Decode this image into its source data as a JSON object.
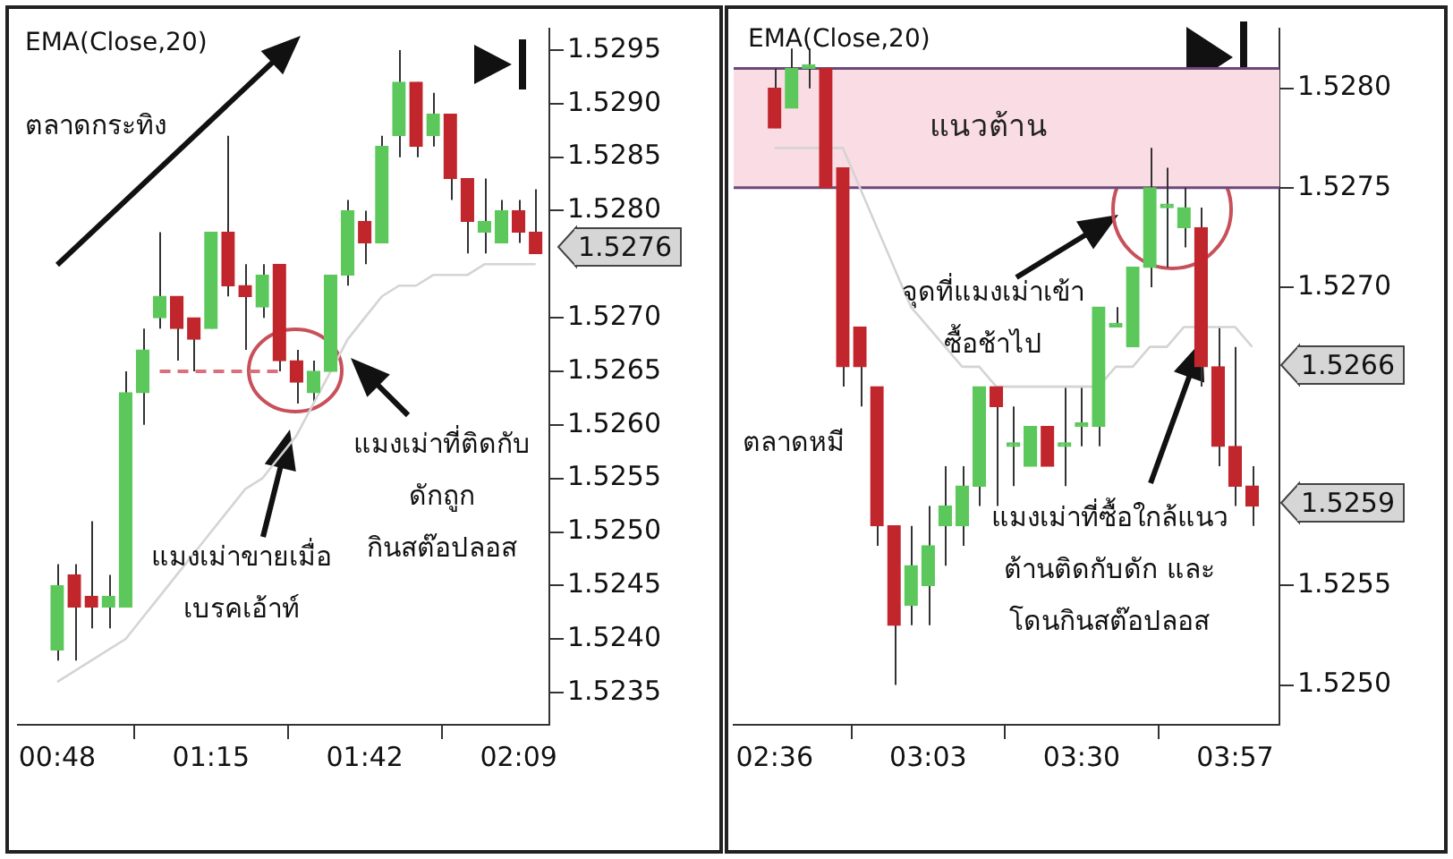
{
  "chart_data": [
    {
      "type": "candlestick",
      "categories": [
        "00:48",
        null,
        null,
        null,
        null,
        null,
        null,
        null,
        null,
        "01:15",
        null,
        null,
        null,
        null,
        null,
        null,
        null,
        null,
        "01:42",
        null,
        null,
        null,
        null,
        null,
        null,
        null,
        null,
        "02:09",
        null
      ],
      "ohlc": [
        [
          1.5239,
          1.5247,
          1.5238,
          1.5245
        ],
        [
          1.5246,
          1.5247,
          1.5238,
          1.5243
        ],
        [
          1.5244,
          1.5251,
          1.5241,
          1.5243
        ],
        [
          1.5243,
          1.5246,
          1.5241,
          1.5244
        ],
        [
          1.5243,
          1.5265,
          1.5243,
          1.5263
        ],
        [
          1.5263,
          1.5269,
          1.526,
          1.5267
        ],
        [
          1.527,
          1.5278,
          1.5269,
          1.5272
        ],
        [
          1.5272,
          1.5272,
          1.5266,
          1.5269
        ],
        [
          1.527,
          1.527,
          1.5265,
          1.5268
        ],
        [
          1.5269,
          1.5278,
          1.5269,
          1.5278
        ],
        [
          1.5278,
          1.5287,
          1.5272,
          1.5273
        ],
        [
          1.5273,
          1.5275,
          1.5267,
          1.5272
        ],
        [
          1.5271,
          1.5275,
          1.527,
          1.5274
        ],
        [
          1.5275,
          1.5275,
          1.5265,
          1.5266
        ],
        [
          1.5266,
          1.5267,
          1.5262,
          1.5264
        ],
        [
          1.5263,
          1.5266,
          1.5262,
          1.5265
        ],
        [
          1.5265,
          1.5274,
          1.5265,
          1.5274
        ],
        [
          1.5274,
          1.5281,
          1.5273,
          1.528
        ],
        [
          1.5279,
          1.528,
          1.5275,
          1.5277
        ],
        [
          1.5277,
          1.5287,
          1.5277,
          1.5286
        ],
        [
          1.5287,
          1.5295,
          1.5285,
          1.5292
        ],
        [
          1.5292,
          1.5292,
          1.5285,
          1.5286
        ],
        [
          1.5287,
          1.5291,
          1.5286,
          1.5289
        ],
        [
          1.5289,
          1.5289,
          1.5281,
          1.5283
        ],
        [
          1.5283,
          1.5283,
          1.5276,
          1.5279
        ],
        [
          1.5278,
          1.5283,
          1.5276,
          1.5279
        ],
        [
          1.5277,
          1.5281,
          1.5277,
          1.528
        ],
        [
          1.528,
          1.5281,
          1.5277,
          1.5278
        ],
        [
          1.5278,
          1.5282,
          1.5276,
          1.5276
        ]
      ],
      "colors": [
        "#5cc85c",
        "#c0262c",
        "#c0262c",
        "#5cc85c",
        "#5cc85c",
        "#5cc85c",
        "#5cc85c",
        "#c0262c",
        "#c0262c",
        "#5cc85c",
        "#c0262c",
        "#c0262c",
        "#5cc85c",
        "#c0262c",
        "#c0262c",
        "#5cc85c",
        "#5cc85c",
        "#5cc85c",
        "#c0262c",
        "#5cc85c",
        "#5cc85c",
        "#c0262c",
        "#5cc85c",
        "#c0262c",
        "#c0262c",
        "#5cc85c",
        "#5cc85c",
        "#c0262c",
        "#c0262c"
      ],
      "series": [
        {
          "type": "line",
          "color": "#d4d4d4",
          "values": [
            1.5236,
            1.5237,
            1.5238,
            1.5239,
            1.524,
            1.5242,
            1.5244,
            1.5246,
            1.5248,
            1.525,
            1.5252,
            1.5254,
            1.5255,
            1.5257,
            1.5259,
            1.5262,
            1.5265,
            1.5268,
            1.527,
            1.5272,
            1.5273,
            1.5273,
            1.5274,
            1.5274,
            1.5274,
            1.5275,
            1.5275,
            1.5275,
            1.5275
          ]
        },
        {
          "type": "line",
          "color": "#d9707a",
          "line_style": "dashed",
          "values": [
            null,
            null,
            null,
            null,
            null,
            null,
            1.5265,
            1.5265,
            1.5265,
            1.5265,
            1.5265,
            1.5265,
            1.5265,
            1.5265,
            null,
            null,
            null,
            null,
            null,
            null,
            null,
            null,
            null,
            null,
            null,
            null,
            null,
            null,
            null
          ]
        }
      ],
      "ylim": [
        1.5232,
        1.5297
      ],
      "yticks": [
        1.5235,
        {
          "value": 1.524,
          "label": "1.5240"
        },
        1.5245,
        {
          "value": 1.525,
          "label": "1.5250"
        },
        1.5255,
        {
          "value": 1.526,
          "label": "1.5260"
        },
        1.5265,
        {
          "value": 1.527,
          "label": "1.5270"
        },
        {
          "value": 1.528,
          "label": "1.5280"
        },
        1.5285,
        {
          "value": 1.529,
          "label": "1.5290"
        },
        1.5295
      ],
      "annotations": [
        "EMA(Close,20)",
        "ตลาดกระทิง",
        "แมงเม่าขายเมื่อ\nเบรคเอ้าท์",
        "แมงเม่าที่ติดกับ\nดักถูก\nกินสต๊อปลอส",
        "1.5276"
      ]
    },
    {
      "type": "candlestick",
      "categories": [
        "02:36",
        null,
        null,
        null,
        null,
        null,
        null,
        null,
        null,
        "03:03",
        null,
        null,
        null,
        null,
        null,
        null,
        null,
        null,
        "03:30",
        null,
        null,
        null,
        null,
        null,
        null,
        null,
        null,
        "03:57",
        null
      ],
      "ohlc": [
        [
          1.528,
          1.5281,
          1.5278,
          1.5278
        ],
        [
          1.5279,
          1.5282,
          1.5279,
          1.5281
        ],
        [
          1.5281,
          1.5282,
          1.528,
          1.5281
        ],
        [
          1.5281,
          1.5281,
          1.5275,
          1.5275
        ],
        [
          1.5276,
          1.5276,
          1.5265,
          1.5266
        ],
        [
          1.5268,
          1.5268,
          1.5264,
          1.5266
        ],
        [
          1.5265,
          1.5265,
          1.5257,
          1.5258
        ],
        [
          1.5258,
          1.5258,
          1.525,
          1.5253
        ],
        [
          1.5254,
          1.5258,
          1.5253,
          1.5256
        ],
        [
          1.5255,
          1.5259,
          1.5253,
          1.5257
        ],
        [
          1.5258,
          1.5261,
          1.5256,
          1.5259
        ],
        [
          1.5258,
          1.5261,
          1.5257,
          1.526
        ],
        [
          1.526,
          1.5265,
          1.5259,
          1.5265
        ],
        [
          1.5265,
          1.5265,
          1.5259,
          1.5264
        ],
        [
          1.5262,
          1.5264,
          1.526,
          1.5262
        ],
        [
          1.5261,
          1.5263,
          1.5261,
          1.5263
        ],
        [
          1.5263,
          1.5263,
          1.5261,
          1.5261
        ],
        [
          1.5262,
          1.5265,
          1.526,
          1.5262
        ],
        [
          1.5263,
          1.5265,
          1.5262,
          1.5263
        ],
        [
          1.5263,
          1.5269,
          1.5262,
          1.5269
        ],
        [
          1.5268,
          1.5269,
          1.5268,
          1.5268
        ],
        [
          1.5267,
          1.5271,
          1.5267,
          1.5271
        ],
        [
          1.5271,
          1.5277,
          1.527,
          1.5275
        ],
        [
          1.5274,
          1.5276,
          1.5271,
          1.5274
        ],
        [
          1.5273,
          1.5275,
          1.5272,
          1.5274
        ],
        [
          1.5273,
          1.5274,
          1.5265,
          1.5266
        ],
        [
          1.5266,
          1.5268,
          1.5261,
          1.5262
        ],
        [
          1.5262,
          1.5267,
          1.5259,
          1.526
        ],
        [
          1.526,
          1.5261,
          1.5258,
          1.5259
        ]
      ],
      "colors": [
        "#c0262c",
        "#5cc85c",
        "#5cc85c",
        "#c0262c",
        "#c0262c",
        "#c0262c",
        "#c0262c",
        "#c0262c",
        "#5cc85c",
        "#5cc85c",
        "#5cc85c",
        "#5cc85c",
        "#5cc85c",
        "#c0262c",
        "#5cc85c",
        "#5cc85c",
        "#c0262c",
        "#5cc85c",
        "#5cc85c",
        "#5cc85c",
        "#5cc85c",
        "#5cc85c",
        "#5cc85c",
        "#5cc85c",
        "#5cc85c",
        "#c0262c",
        "#c0262c",
        "#c0262c",
        "#c0262c"
      ],
      "series": [
        {
          "type": "line",
          "color": "#d4d4d4",
          "values": [
            1.5277,
            1.5277,
            1.5277,
            1.5277,
            1.5277,
            1.5275,
            1.5273,
            1.5271,
            1.5269,
            1.5268,
            1.5267,
            1.5266,
            1.5266,
            1.5265,
            1.5265,
            1.5265,
            1.5265,
            1.5265,
            1.5265,
            1.5265,
            1.5266,
            1.5266,
            1.5267,
            1.5267,
            1.5268,
            1.5268,
            1.5268,
            1.5268,
            1.5267
          ]
        }
      ],
      "ylim": [
        1.5248,
        1.5283
      ],
      "yticks": [
        {
          "value": 1.525,
          "label": "1.5250"
        },
        1.5255,
        {
          "value": 1.527,
          "label": "1.5270"
        },
        1.5275,
        {
          "value": 1.528,
          "label": "1.5280"
        }
      ],
      "bands": [
        {
          "axis": "y",
          "from": 1.5275,
          "to": 1.5281,
          "label": "แนวต้าน",
          "color": "#fadce4"
        }
      ],
      "ref_lines": [
        {
          "axis": "y",
          "value": 1.5281,
          "color": "#6a4a7a"
        },
        {
          "axis": "y",
          "value": 1.5275,
          "color": "#6a4a7a"
        }
      ],
      "annotations": [
        "EMA(Close,20)",
        "ตลาดหมี",
        "จุดที่แมงเม่าเข้า\nซื้อช้าไป",
        "แมงเม่าที่ซื้อใกล้แนว\nต้านติดกับดัก และ\nโดนกินสต๊อปลอส",
        "1.5266",
        "1.5259"
      ]
    }
  ]
}
